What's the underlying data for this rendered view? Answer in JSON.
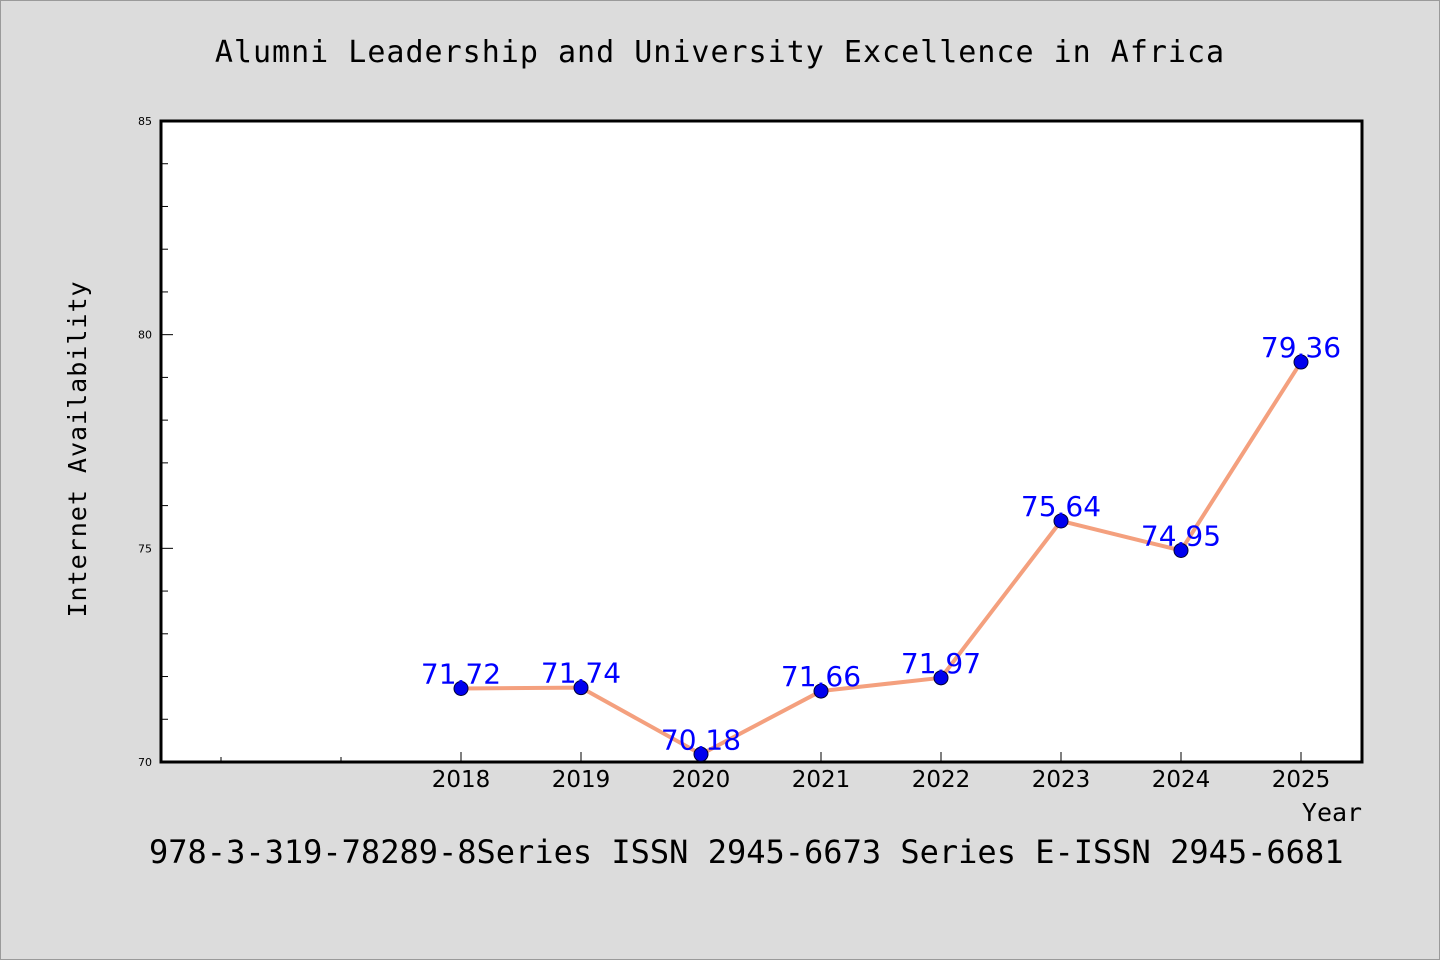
{
  "chart_data": {
    "type": "line",
    "title": "Alumni Leadership and University Excellence in Africa",
    "xlabel": "Year",
    "ylabel": "Internet Availability",
    "categories": [
      "2018",
      "2019",
      "2020",
      "2021",
      "2022",
      "2023",
      "2024",
      "2025"
    ],
    "series": [
      {
        "values": [
          71.72,
          71.74,
          70.18,
          71.66,
          71.97,
          75.64,
          74.95,
          79.36
        ],
        "labels": [
          "71.72",
          "71.74",
          "70.18",
          "71.66",
          "71.97",
          "75.64",
          "74.95",
          "79.36"
        ]
      }
    ],
    "ylim": [
      70,
      85
    ],
    "yticks": [
      70,
      75,
      80,
      85
    ],
    "ytick_labels": [
      "70",
      "75",
      "80",
      "85"
    ],
    "y_minor_step": 1,
    "grid": false,
    "line_color": "#f4a07e",
    "marker_color": "#0000ee",
    "label_color": "#0000ff",
    "plot_background": "#ffffff",
    "background": "#dcdcdc"
  },
  "footer": {
    "text": "978-3-319-78289-8Series ISSN 2945-6673 Series E-ISSN 2945-6681"
  }
}
